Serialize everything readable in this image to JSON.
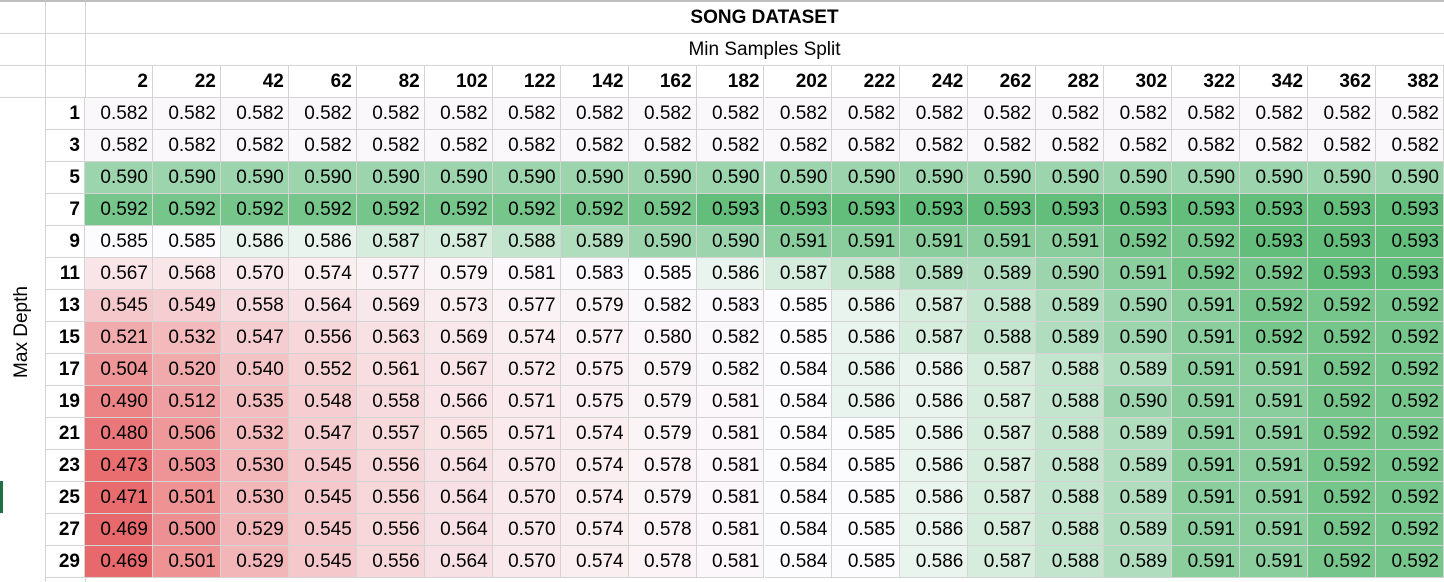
{
  "chart_data": {
    "type": "heatmap",
    "title": "SONG DATASET",
    "xlabel": "Min Samples Split",
    "ylabel": "Max Depth",
    "colors": {
      "low": "#e8696b",
      "mid": "#fcfcff",
      "high": "#63be7b"
    },
    "x": [
      "2",
      "22",
      "42",
      "62",
      "82",
      "102",
      "122",
      "142",
      "162",
      "182",
      "202",
      "222",
      "242",
      "262",
      "282",
      "302",
      "322",
      "342",
      "362",
      "382"
    ],
    "y": [
      "1",
      "3",
      "5",
      "7",
      "9",
      "11",
      "13",
      "15",
      "17",
      "19",
      "21",
      "23",
      "25",
      "27",
      "29"
    ],
    "values": [
      [
        "0.582",
        "0.582",
        "0.582",
        "0.582",
        "0.582",
        "0.582",
        "0.582",
        "0.582",
        "0.582",
        "0.582",
        "0.582",
        "0.582",
        "0.582",
        "0.582",
        "0.582",
        "0.582",
        "0.582",
        "0.582",
        "0.582",
        "0.582"
      ],
      [
        "0.582",
        "0.582",
        "0.582",
        "0.582",
        "0.582",
        "0.582",
        "0.582",
        "0.582",
        "0.582",
        "0.582",
        "0.582",
        "0.582",
        "0.582",
        "0.582",
        "0.582",
        "0.582",
        "0.582",
        "0.582",
        "0.582",
        "0.582"
      ],
      [
        "0.590",
        "0.590",
        "0.590",
        "0.590",
        "0.590",
        "0.590",
        "0.590",
        "0.590",
        "0.590",
        "0.590",
        "0.590",
        "0.590",
        "0.590",
        "0.590",
        "0.590",
        "0.590",
        "0.590",
        "0.590",
        "0.590",
        "0.590"
      ],
      [
        "0.592",
        "0.592",
        "0.592",
        "0.592",
        "0.592",
        "0.592",
        "0.592",
        "0.592",
        "0.592",
        "0.593",
        "0.593",
        "0.593",
        "0.593",
        "0.593",
        "0.593",
        "0.593",
        "0.593",
        "0.593",
        "0.593",
        "0.593"
      ],
      [
        "0.585",
        "0.585",
        "0.586",
        "0.586",
        "0.587",
        "0.587",
        "0.588",
        "0.589",
        "0.590",
        "0.590",
        "0.591",
        "0.591",
        "0.591",
        "0.591",
        "0.591",
        "0.592",
        "0.592",
        "0.593",
        "0.593",
        "0.593"
      ],
      [
        "0.567",
        "0.568",
        "0.570",
        "0.574",
        "0.577",
        "0.579",
        "0.581",
        "0.583",
        "0.585",
        "0.586",
        "0.587",
        "0.588",
        "0.589",
        "0.589",
        "0.590",
        "0.591",
        "0.592",
        "0.592",
        "0.593",
        "0.593"
      ],
      [
        "0.545",
        "0.549",
        "0.558",
        "0.564",
        "0.569",
        "0.573",
        "0.577",
        "0.579",
        "0.582",
        "0.583",
        "0.585",
        "0.586",
        "0.587",
        "0.588",
        "0.589",
        "0.590",
        "0.591",
        "0.592",
        "0.592",
        "0.592"
      ],
      [
        "0.521",
        "0.532",
        "0.547",
        "0.556",
        "0.563",
        "0.569",
        "0.574",
        "0.577",
        "0.580",
        "0.582",
        "0.585",
        "0.586",
        "0.587",
        "0.588",
        "0.589",
        "0.590",
        "0.591",
        "0.592",
        "0.592",
        "0.592"
      ],
      [
        "0.504",
        "0.520",
        "0.540",
        "0.552",
        "0.561",
        "0.567",
        "0.572",
        "0.575",
        "0.579",
        "0.582",
        "0.584",
        "0.586",
        "0.586",
        "0.587",
        "0.588",
        "0.589",
        "0.591",
        "0.591",
        "0.592",
        "0.592"
      ],
      [
        "0.490",
        "0.512",
        "0.535",
        "0.548",
        "0.558",
        "0.566",
        "0.571",
        "0.575",
        "0.579",
        "0.581",
        "0.584",
        "0.586",
        "0.586",
        "0.587",
        "0.588",
        "0.590",
        "0.591",
        "0.591",
        "0.592",
        "0.592"
      ],
      [
        "0.480",
        "0.506",
        "0.532",
        "0.547",
        "0.557",
        "0.565",
        "0.571",
        "0.574",
        "0.579",
        "0.581",
        "0.584",
        "0.585",
        "0.586",
        "0.587",
        "0.588",
        "0.589",
        "0.591",
        "0.591",
        "0.592",
        "0.592"
      ],
      [
        "0.473",
        "0.503",
        "0.530",
        "0.545",
        "0.556",
        "0.564",
        "0.570",
        "0.574",
        "0.578",
        "0.581",
        "0.584",
        "0.585",
        "0.586",
        "0.587",
        "0.588",
        "0.589",
        "0.591",
        "0.591",
        "0.592",
        "0.592"
      ],
      [
        "0.471",
        "0.501",
        "0.530",
        "0.545",
        "0.556",
        "0.564",
        "0.570",
        "0.574",
        "0.579",
        "0.581",
        "0.584",
        "0.585",
        "0.586",
        "0.587",
        "0.588",
        "0.589",
        "0.591",
        "0.591",
        "0.592",
        "0.592"
      ],
      [
        "0.469",
        "0.500",
        "0.529",
        "0.545",
        "0.556",
        "0.564",
        "0.570",
        "0.574",
        "0.578",
        "0.581",
        "0.584",
        "0.585",
        "0.586",
        "0.587",
        "0.588",
        "0.589",
        "0.591",
        "0.591",
        "0.592",
        "0.592"
      ],
      [
        "0.469",
        "0.501",
        "0.529",
        "0.545",
        "0.556",
        "0.564",
        "0.570",
        "0.574",
        "0.578",
        "0.581",
        "0.584",
        "0.585",
        "0.586",
        "0.587",
        "0.588",
        "0.589",
        "0.591",
        "0.591",
        "0.592",
        "0.592"
      ]
    ]
  }
}
